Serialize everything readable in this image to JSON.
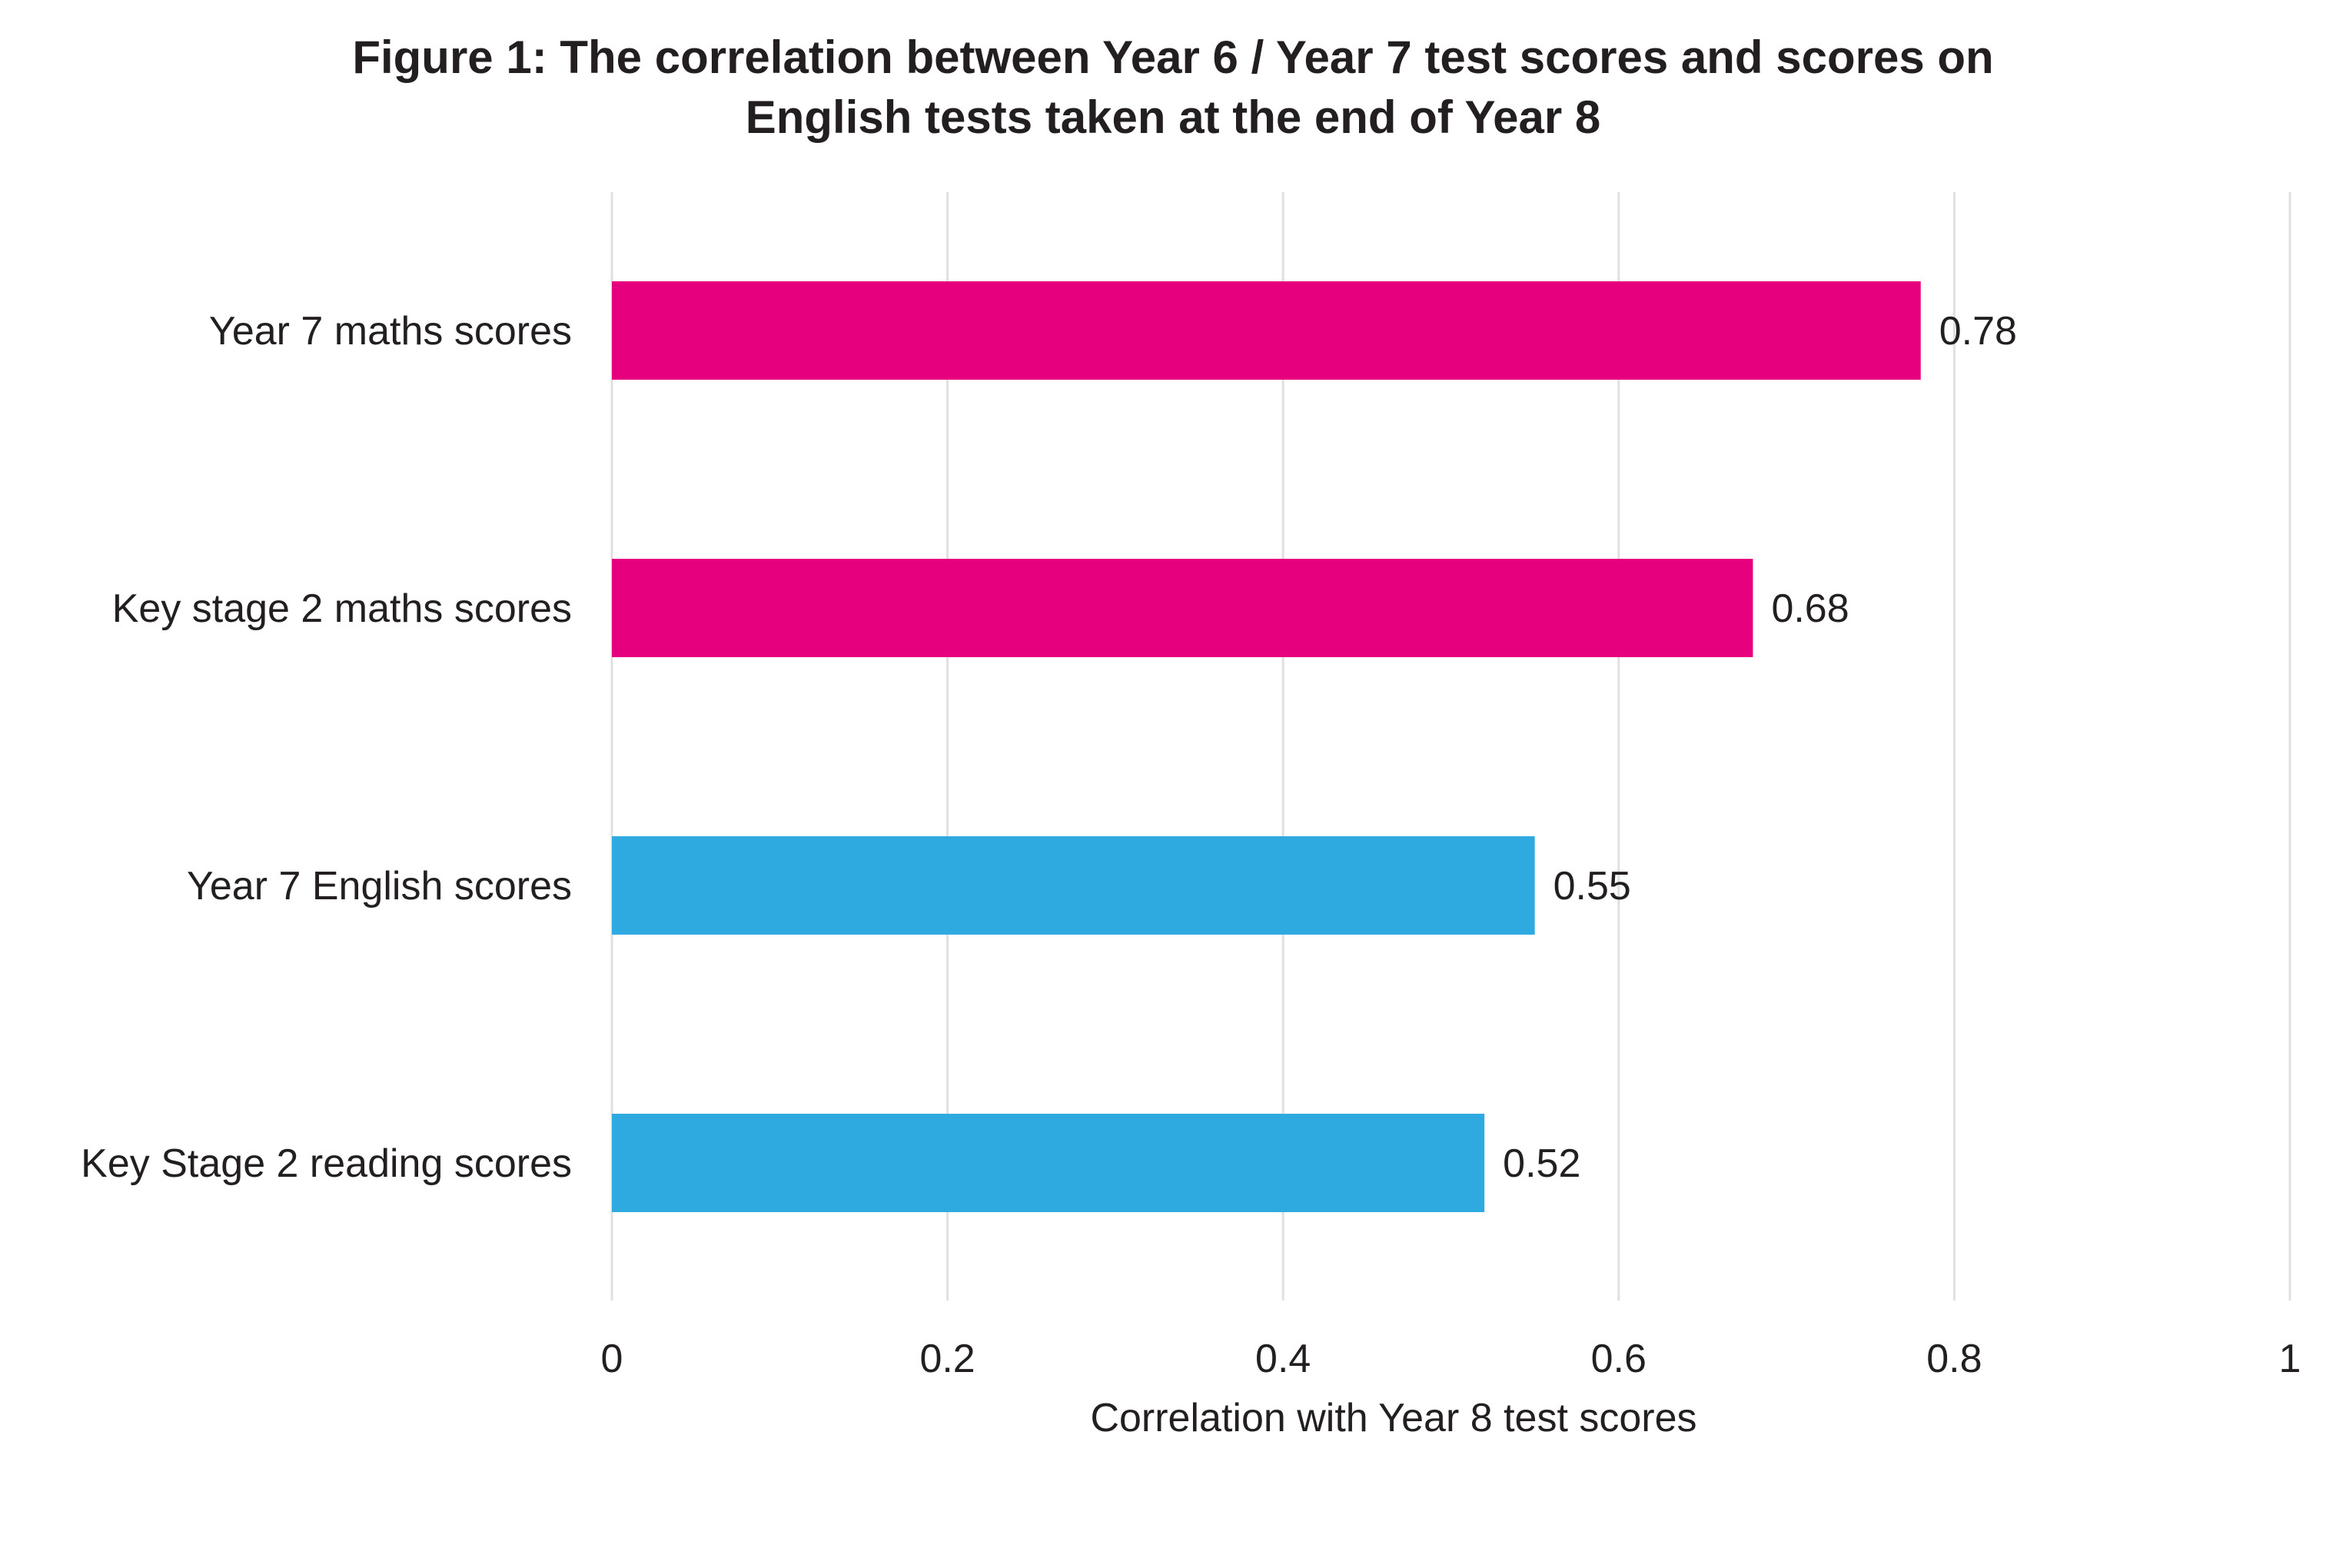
{
  "chart_data": {
    "type": "bar",
    "orientation": "horizontal",
    "title_lines": [
      "Figure 1: The correlation between Year 6 / Year 7 test scores and scores on",
      "English tests taken at the end of Year 8"
    ],
    "xlabel": "Correlation with Year 8 test scores",
    "ylabel": "",
    "xlim": [
      0,
      1
    ],
    "xticks": [
      "0",
      "0.2",
      "0.4",
      "0.6",
      "0.8",
      "1"
    ],
    "xtick_values": [
      0,
      0.2,
      0.4,
      0.6,
      0.8,
      1
    ],
    "grid": true,
    "legend": "none",
    "categories": [
      "Year 7 maths scores",
      "Key stage 2 maths scores",
      "Year 7 English scores",
      "Key Stage 2 reading scores"
    ],
    "values": [
      0.78,
      0.68,
      0.55,
      0.52
    ],
    "value_labels": [
      "0.78",
      "0.68",
      "0.55",
      "0.52"
    ],
    "bar_colors": [
      "#e6007e",
      "#e6007e",
      "#2eaae1",
      "#2eaae1"
    ],
    "gridline_color": "#e0e0e0"
  }
}
